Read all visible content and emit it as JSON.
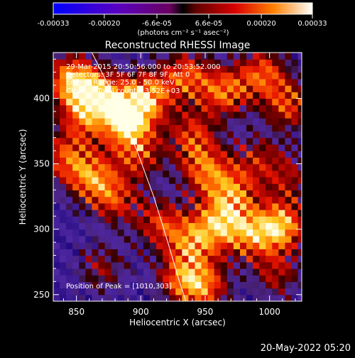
{
  "colorbar": {
    "tick_labels": [
      "-0.00033",
      "-0.00020",
      "-6.6e-05",
      "6.6e-05",
      "0.00020",
      "0.00033"
    ],
    "tick_values": [
      -0.00033,
      -0.0002,
      -6.6e-05,
      6.6e-05,
      0.0002,
      0.00033
    ],
    "range": [
      -0.00033,
      0.00033
    ],
    "unit_label": "(photons cm⁻² s⁻¹ asec⁻²)"
  },
  "chart_data": {
    "type": "heatmap",
    "title": "Reconstructed RHESSI Image",
    "xlabel": "Heliocentric X (arcsec)",
    "ylabel": "Heliocentric Y (arcsec)",
    "xlim": [
      832,
      1025
    ],
    "ylim": [
      245,
      435
    ],
    "x_ticks": [
      850,
      900,
      950,
      1000
    ],
    "y_ticks": [
      250,
      300,
      350,
      400
    ],
    "annotations": [
      "29-Mar-2015 20:50:56.000 to 20:53:52.000",
      "Detectors: 3F 5F 6F 7F 8F 9F, Att 0",
      "Energy Range: 25.0 - 50.0 keV",
      "Clean     Total counts: 3.52E+03"
    ],
    "peak_label": "Position of Peak = [1010,303]",
    "peak": [
      1010,
      303
    ],
    "blobs": [
      {
        "x": 845,
        "y": 415,
        "v": 1.0
      },
      {
        "x": 865,
        "y": 405,
        "v": 0.9
      },
      {
        "x": 888,
        "y": 390,
        "v": 0.85
      },
      {
        "x": 905,
        "y": 402,
        "v": 0.95
      },
      {
        "x": 935,
        "y": 418,
        "v": 0.85
      },
      {
        "x": 965,
        "y": 405,
        "v": 0.9
      },
      {
        "x": 995,
        "y": 420,
        "v": 0.85
      },
      {
        "x": 1015,
        "y": 395,
        "v": 0.8
      },
      {
        "x": 855,
        "y": 385,
        "v": 0.7
      },
      {
        "x": 840,
        "y": 355,
        "v": 0.75
      },
      {
        "x": 862,
        "y": 340,
        "v": 0.9
      },
      {
        "x": 900,
        "y": 355,
        "v": 0.6
      },
      {
        "x": 940,
        "y": 372,
        "v": 0.75
      },
      {
        "x": 950,
        "y": 345,
        "v": 0.85
      },
      {
        "x": 972,
        "y": 328,
        "v": 0.8
      },
      {
        "x": 990,
        "y": 355,
        "v": 0.55
      },
      {
        "x": 880,
        "y": 322,
        "v": 0.7
      },
      {
        "x": 915,
        "y": 305,
        "v": 0.75
      },
      {
        "x": 940,
        "y": 290,
        "v": 0.8
      },
      {
        "x": 960,
        "y": 305,
        "v": 0.85
      },
      {
        "x": 985,
        "y": 296,
        "v": 0.85
      },
      {
        "x": 1010,
        "y": 303,
        "v": 1.1
      },
      {
        "x": 870,
        "y": 270,
        "v": 0.55
      },
      {
        "x": 930,
        "y": 262,
        "v": 0.75
      },
      {
        "x": 950,
        "y": 256,
        "v": 0.85
      },
      {
        "x": 1005,
        "y": 265,
        "v": 0.6
      },
      {
        "x": 890,
        "y": 375,
        "v": 0.65
      },
      {
        "x": 1015,
        "y": 340,
        "v": 0.55
      }
    ],
    "limb_curve": [
      [
        862,
        435
      ],
      [
        880,
        400
      ],
      [
        897,
        360
      ],
      [
        910,
        325
      ],
      [
        921,
        290
      ],
      [
        930,
        260
      ],
      [
        935,
        245
      ]
    ]
  },
  "footer": {
    "timestamp": "20-May-2022 05:20"
  }
}
